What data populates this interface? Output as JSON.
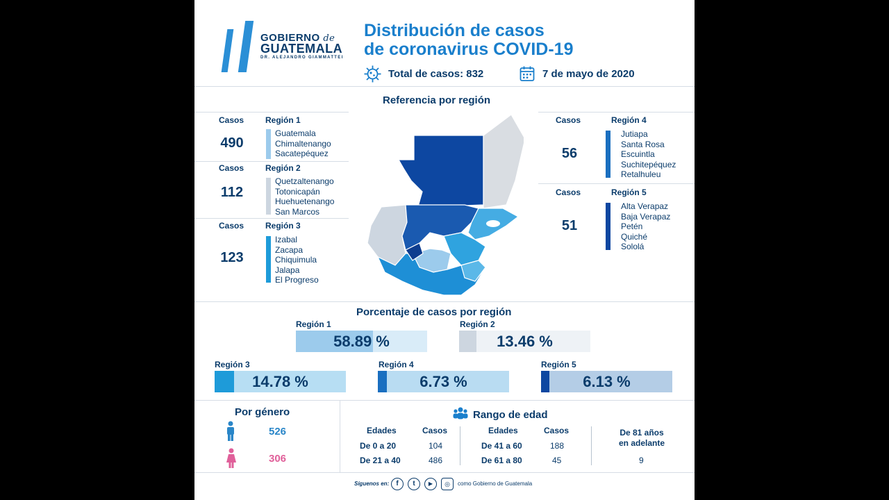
{
  "header": {
    "logo": {
      "line1": "GOBIERNO",
      "line1_de": "de",
      "line2": "GUATEMALA",
      "line3": "DR. ALEJANDRO GIAMMATTEI"
    },
    "title_line1": "Distribución de casos",
    "title_line2": "de coronavirus COVID-19",
    "total_label": "Total de casos: 832",
    "date_label": "7 de mayo de 2020",
    "virus_icon": "virus-icon",
    "calendar_icon": "calendar-icon"
  },
  "map_title": "Referencia por región",
  "casos_label": "Casos",
  "regions": [
    {
      "name": "Región 1",
      "cases": "490",
      "color": "#9ccbec",
      "departments": [
        "Guatemala",
        "Chimaltenango",
        "Sacatepéquez"
      ]
    },
    {
      "name": "Región 2",
      "cases": "112",
      "color": "#cdd6e0",
      "departments": [
        "Quetzaltenango",
        "Totonicapán",
        "Huehuetenango",
        "San Marcos"
      ]
    },
    {
      "name": "Región 3",
      "cases": "123",
      "color": "#1e9bd9",
      "departments": [
        "Izabal",
        "Zacapa",
        "Chiquimula",
        "Jalapa",
        "El Progreso"
      ]
    },
    {
      "name": "Región 4",
      "cases": "56",
      "color": "#1a6fc0",
      "departments": [
        "Jutiapa",
        "Santa Rosa",
        "Escuintla",
        "Suchitepéquez",
        "Retalhuleu"
      ]
    },
    {
      "name": "Región 5",
      "cases": "51",
      "color": "#0d47a1",
      "departments": [
        "Alta Verapaz",
        "Baja Verapaz",
        "Petén",
        "Quiché",
        "Sololá"
      ]
    }
  ],
  "percentages": {
    "title": "Porcentaje de casos por región",
    "items": [
      {
        "label": "Región 1",
        "value": "58.89 %",
        "percent": 58.89,
        "fill": "#9ccbec",
        "bg": "#d9ecf8"
      },
      {
        "label": "Región 2",
        "value": "13.46 %",
        "percent": 13.46,
        "fill": "#cdd6e0",
        "bg": "#eef2f6"
      },
      {
        "label": "Región 3",
        "value": "14.78 %",
        "percent": 14.78,
        "fill": "#1e9bd9",
        "bg": "#b7def3"
      },
      {
        "label": "Región 4",
        "value": "6.73 %",
        "percent": 6.73,
        "fill": "#1a6fc0",
        "bg": "#b9dcf2"
      },
      {
        "label": "Región 5",
        "value": "6.13 %",
        "percent": 6.13,
        "fill": "#0d47a1",
        "bg": "#b4cde6"
      }
    ]
  },
  "gender": {
    "title": "Por género",
    "male": {
      "value": "526",
      "color": "#2a86c8",
      "icon": "male-person-icon"
    },
    "female": {
      "value": "306",
      "color": "#e0609a",
      "icon": "female-person-icon"
    }
  },
  "age": {
    "title": "Rango de edad",
    "icon": "people-group-icon",
    "col_edades": "Edades",
    "col_casos": "Casos",
    "left": [
      {
        "range": "De 0 a 20",
        "cases": "104"
      },
      {
        "range": "De 21 a 40",
        "cases": "486"
      }
    ],
    "right": [
      {
        "range": "De 41 a 60",
        "cases": "188"
      },
      {
        "range": "De 61 a 80",
        "cases": "45"
      }
    ],
    "older_line1": "De 81 años",
    "older_line2": "en adelante",
    "older_value": "9"
  },
  "footer": {
    "follow": "Síguenos en:",
    "handle": "como Gobierno de Guatemala",
    "icons": [
      "facebook-icon",
      "twitter-icon",
      "youtube-icon",
      "instagram-icon"
    ]
  }
}
